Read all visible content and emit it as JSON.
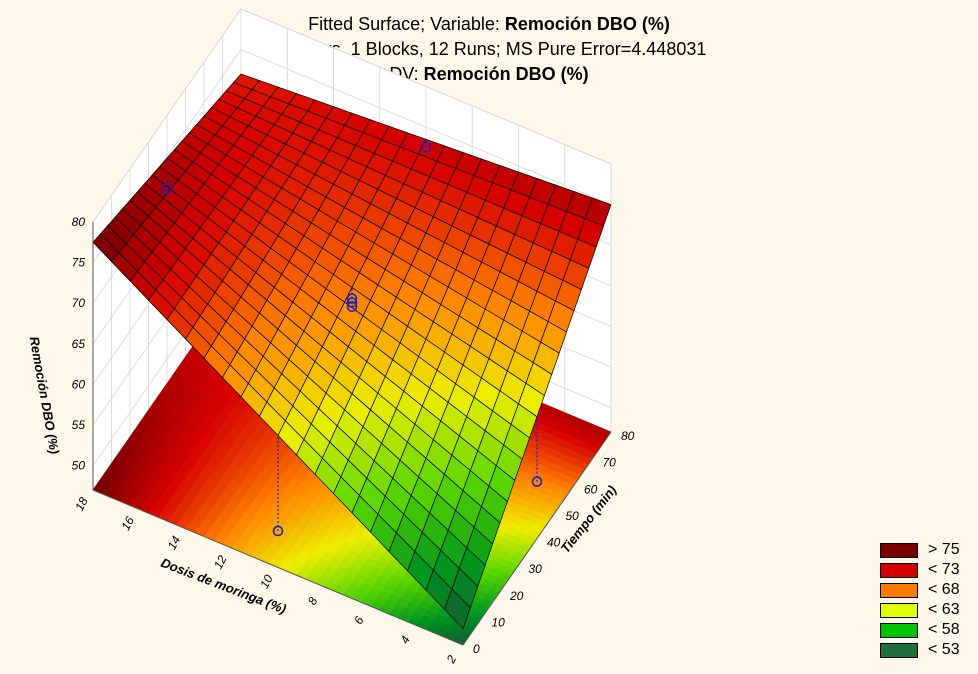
{
  "chart_data": {
    "type": "surface",
    "title": {
      "line1_prefix": "Fitted Surface; Variable: ",
      "line1_bold": "Remoción DBO (%)",
      "line2": "2 factors, 1 Blocks, 12 Runs; MS Pure Error=4.448031",
      "line3_prefix": "DV: ",
      "line3_bold": "Remoción DBO (%)"
    },
    "xlabel": "Dosis de moringa (%)",
    "ylabel": "Tiempo (min)",
    "zlabel": "Remoción DBO (%)",
    "x_ticks": [
      "2",
      "4",
      "6",
      "8",
      "10",
      "12",
      "14",
      "16",
      "18"
    ],
    "y_ticks": [
      "0",
      "10",
      "20",
      "30",
      "40",
      "50",
      "60",
      "70",
      "80"
    ],
    "z_ticks": [
      "50",
      "55",
      "60",
      "65",
      "70",
      "75",
      "80"
    ],
    "xlim": [
      2,
      18
    ],
    "ylim": [
      0,
      80
    ],
    "zlim": [
      47,
      80
    ],
    "surface_corners": {
      "x2_y0": 49,
      "x18_y0": 77.5,
      "x2_y80": 75,
      "x18_y80": 72
    },
    "observed_points": [
      {
        "x": 18,
        "y": 40,
        "z": 71
      },
      {
        "x": 10,
        "y": 80,
        "z": 72.5
      },
      {
        "x": 2,
        "y": 40,
        "z": 54
      },
      {
        "x": 10,
        "y": 0,
        "z": 51.5
      },
      {
        "x": 10,
        "y": 40,
        "z": 67
      },
      {
        "x": 10,
        "y": 40,
        "z": 66.5
      },
      {
        "x": 10,
        "y": 40,
        "z": 66
      }
    ],
    "legend": [
      {
        "label": "> 75",
        "color": "#7a0000"
      },
      {
        "label": "< 73",
        "color": "#d40000"
      },
      {
        "label": "< 68",
        "color": "#ff7a00"
      },
      {
        "label": "< 63",
        "color": "#e4ff00"
      },
      {
        "label": "< 58",
        "color": "#00c400"
      },
      {
        "label": "< 53",
        "color": "#1f6e3c"
      }
    ],
    "grid": true
  }
}
